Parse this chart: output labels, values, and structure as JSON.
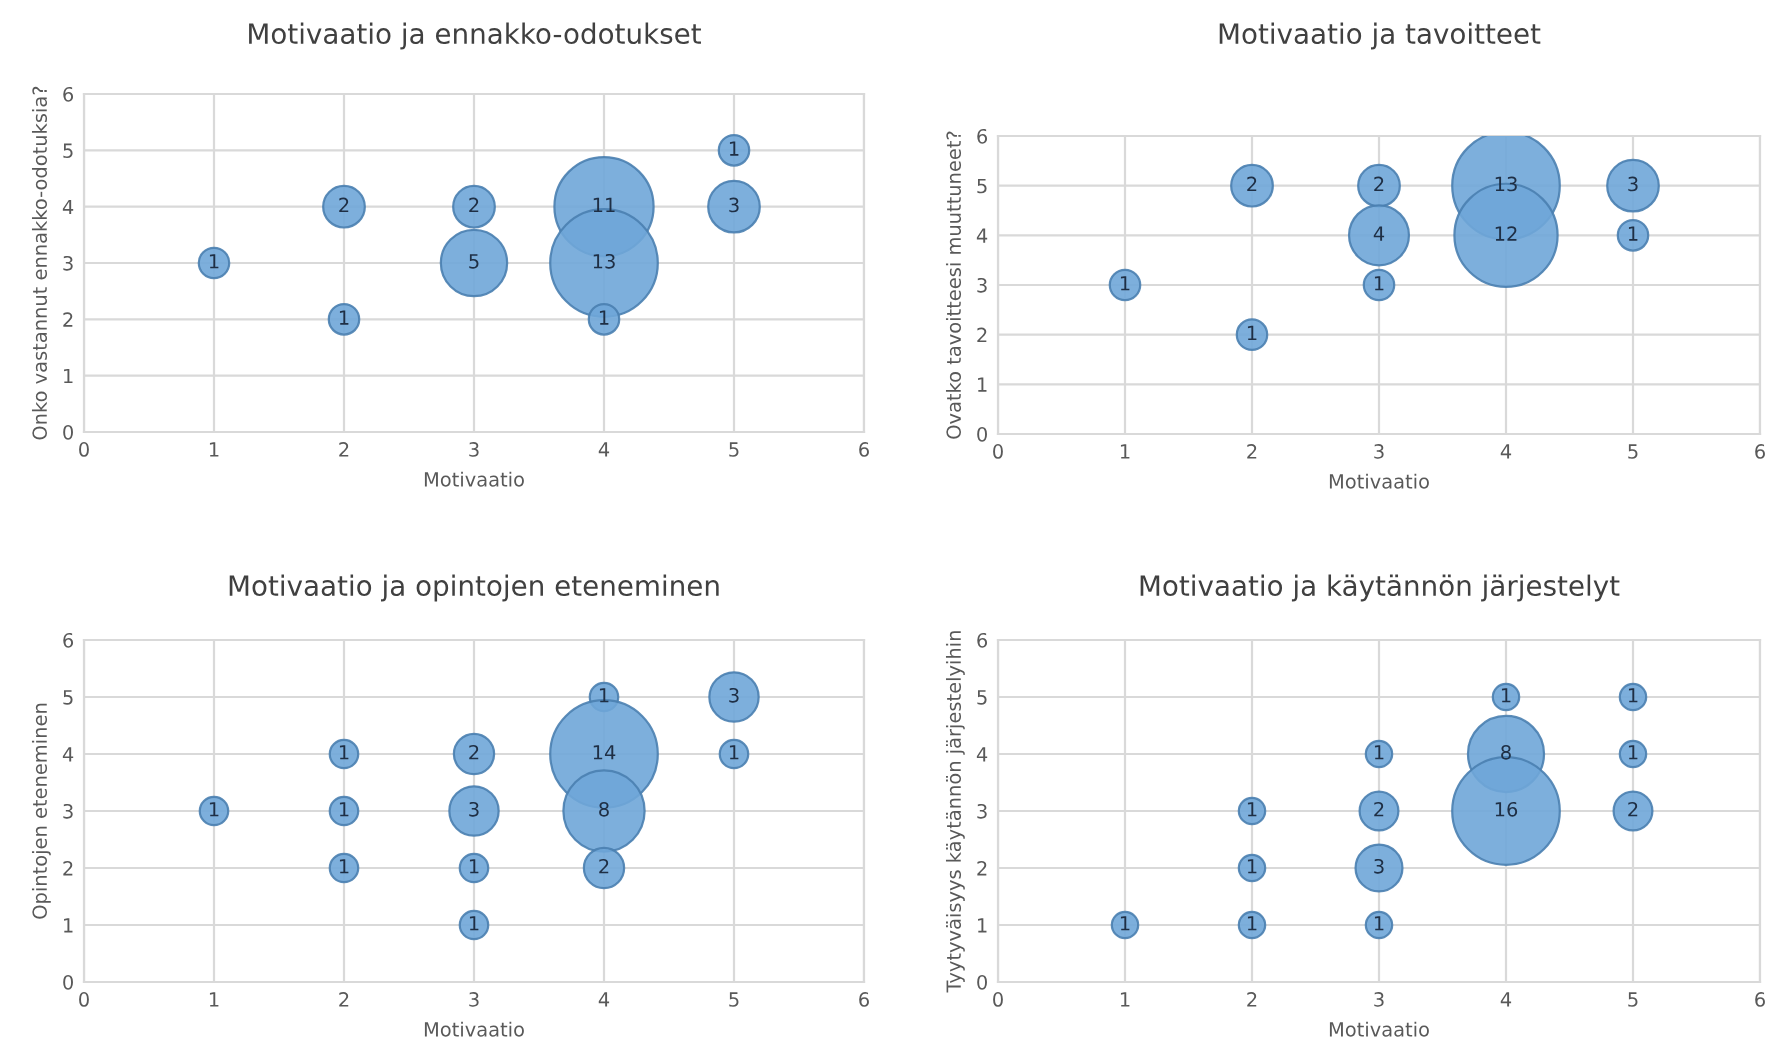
{
  "chart_data": [
    {
      "type": "bubble",
      "title": "Motivaatio ja ennakko-odotukset",
      "xlabel": "Motivaatio",
      "ylabel": "Onko vastannut ennakko-odotuksia?",
      "xlim": [
        0,
        6
      ],
      "ylim": [
        0,
        6
      ],
      "xticks": [
        0,
        1,
        2,
        3,
        4,
        5,
        6
      ],
      "yticks": [
        0,
        1,
        2,
        3,
        4,
        5,
        6
      ],
      "grid": true,
      "series": [
        {
          "color": "#6fa6d8",
          "x": [
            1,
            2,
            2,
            3,
            3,
            4,
            4,
            4,
            5,
            5
          ],
          "values": [
            3,
            4,
            2,
            4,
            3,
            4,
            3,
            2,
            5,
            4
          ],
          "sizes": [
            0.08,
            0.15,
            0.08,
            0.15,
            0.38,
            0.85,
            1,
            0.08,
            0.08,
            0.23
          ]
        }
      ],
      "annotations": [
        {
          "text": "1",
          "x": 1,
          "y": 3
        },
        {
          "text": "2",
          "x": 2,
          "y": 4
        },
        {
          "text": "1",
          "x": 2,
          "y": 2
        },
        {
          "text": "2",
          "x": 3,
          "y": 4
        },
        {
          "text": "5",
          "x": 3,
          "y": 3
        },
        {
          "text": "11",
          "x": 4,
          "y": 4
        },
        {
          "text": "13",
          "x": 4,
          "y": 3
        },
        {
          "text": "1",
          "x": 4,
          "y": 2
        },
        {
          "text": "1",
          "x": 5,
          "y": 5
        },
        {
          "text": "3",
          "x": 5,
          "y": 4
        }
      ]
    },
    {
      "type": "bubble",
      "title": "Motivaatio ja tavoitteet",
      "xlabel": "Motivaatio",
      "ylabel": "Ovatko tavoitteesi muuttuneet?",
      "xlim": [
        0,
        6
      ],
      "ylim": [
        0,
        6
      ],
      "xticks": [
        0,
        1,
        2,
        3,
        4,
        5,
        6
      ],
      "yticks": [
        0,
        1,
        2,
        3,
        4,
        5,
        6
      ],
      "grid": true,
      "series": [
        {
          "color": "#6fa6d8",
          "x": [
            1,
            2,
            2,
            3,
            3,
            3,
            4,
            4,
            5,
            5
          ],
          "values": [
            3,
            5,
            2,
            5,
            4,
            3,
            5,
            4,
            5,
            4
          ],
          "sizes": [
            0.08,
            0.15,
            0.08,
            0.15,
            0.31,
            0.08,
            1,
            0.92,
            0.23,
            0.08
          ]
        }
      ],
      "annotations": [
        {
          "text": "1",
          "x": 1,
          "y": 3
        },
        {
          "text": "2",
          "x": 2,
          "y": 5
        },
        {
          "text": "1",
          "x": 2,
          "y": 2
        },
        {
          "text": "2",
          "x": 3,
          "y": 5
        },
        {
          "text": "4",
          "x": 3,
          "y": 4
        },
        {
          "text": "1",
          "x": 3,
          "y": 3
        },
        {
          "text": "13",
          "x": 4,
          "y": 5
        },
        {
          "text": "12",
          "x": 4,
          "y": 4
        },
        {
          "text": "3",
          "x": 5,
          "y": 5
        },
        {
          "text": "1",
          "x": 5,
          "y": 4
        }
      ]
    },
    {
      "type": "bubble",
      "title": "Motivaatio ja opintojen eteneminen",
      "xlabel": "Motivaatio",
      "ylabel": "Opintojen eteneminen",
      "xlim": [
        0,
        6
      ],
      "ylim": [
        0,
        6
      ],
      "xticks": [
        0,
        1,
        2,
        3,
        4,
        5,
        6
      ],
      "yticks": [
        0,
        1,
        2,
        3,
        4,
        5,
        6
      ],
      "grid": true,
      "series": [
        {
          "color": "#6fa6d8",
          "x": [
            1,
            2,
            2,
            2,
            3,
            3,
            3,
            3,
            4,
            4,
            4,
            4,
            5,
            5
          ],
          "values": [
            3,
            4,
            3,
            2,
            4,
            3,
            2,
            1,
            5,
            4,
            3,
            2,
            5,
            4
          ],
          "sizes": [
            0.07,
            0.07,
            0.07,
            0.07,
            0.14,
            0.21,
            0.07,
            0.07,
            0.07,
            1,
            0.57,
            0.14,
            0.21,
            0.07
          ]
        }
      ],
      "annotations": [
        {
          "text": "1",
          "x": 1,
          "y": 3
        },
        {
          "text": "1",
          "x": 2,
          "y": 4
        },
        {
          "text": "1",
          "x": 2,
          "y": 3
        },
        {
          "text": "1",
          "x": 2,
          "y": 2
        },
        {
          "text": "2",
          "x": 3,
          "y": 4
        },
        {
          "text": "3",
          "x": 3,
          "y": 3
        },
        {
          "text": "1",
          "x": 3,
          "y": 2
        },
        {
          "text": "1",
          "x": 3,
          "y": 1
        },
        {
          "text": "1",
          "x": 4,
          "y": 5
        },
        {
          "text": "14",
          "x": 4,
          "y": 4
        },
        {
          "text": "8",
          "x": 4,
          "y": 3
        },
        {
          "text": "2",
          "x": 4,
          "y": 2
        },
        {
          "text": "3",
          "x": 5,
          "y": 5
        },
        {
          "text": "1",
          "x": 5,
          "y": 4
        }
      ]
    },
    {
      "type": "bubble",
      "title": "Motivaatio ja käytännön järjestelyt",
      "xlabel": "Motivaatio",
      "ylabel": "Tyytyväisyys käytännön järjestelyihin",
      "xlim": [
        0,
        6
      ],
      "ylim": [
        0,
        6
      ],
      "xticks": [
        0,
        1,
        2,
        3,
        4,
        5,
        6
      ],
      "yticks": [
        0,
        1,
        2,
        3,
        4,
        5,
        6
      ],
      "grid": true,
      "series": [
        {
          "color": "#6fa6d8",
          "x": [
            1,
            2,
            2,
            2,
            3,
            3,
            3,
            3,
            4,
            4,
            4,
            5,
            5,
            5
          ],
          "values": [
            1,
            3,
            2,
            1,
            4,
            3,
            2,
            1,
            5,
            4,
            3,
            5,
            4,
            3
          ],
          "sizes": [
            0.06,
            0.06,
            0.06,
            0.06,
            0.06,
            0.13,
            0.19,
            0.06,
            0.06,
            0.5,
            1,
            0.06,
            0.06,
            0.13
          ]
        }
      ],
      "annotations": [
        {
          "text": "1",
          "x": 1,
          "y": 1
        },
        {
          "text": "1",
          "x": 2,
          "y": 3
        },
        {
          "text": "1",
          "x": 2,
          "y": 2
        },
        {
          "text": "1",
          "x": 2,
          "y": 1
        },
        {
          "text": "1",
          "x": 3,
          "y": 4
        },
        {
          "text": "2",
          "x": 3,
          "y": 3
        },
        {
          "text": "3",
          "x": 3,
          "y": 2
        },
        {
          "text": "1",
          "x": 3,
          "y": 1
        },
        {
          "text": "1",
          "x": 4,
          "y": 5
        },
        {
          "text": "8",
          "x": 4,
          "y": 4
        },
        {
          "text": "16",
          "x": 4,
          "y": 3
        },
        {
          "text": "1",
          "x": 5,
          "y": 5
        },
        {
          "text": "1",
          "x": 5,
          "y": 4
        },
        {
          "text": "2",
          "x": 5,
          "y": 3
        }
      ]
    }
  ]
}
